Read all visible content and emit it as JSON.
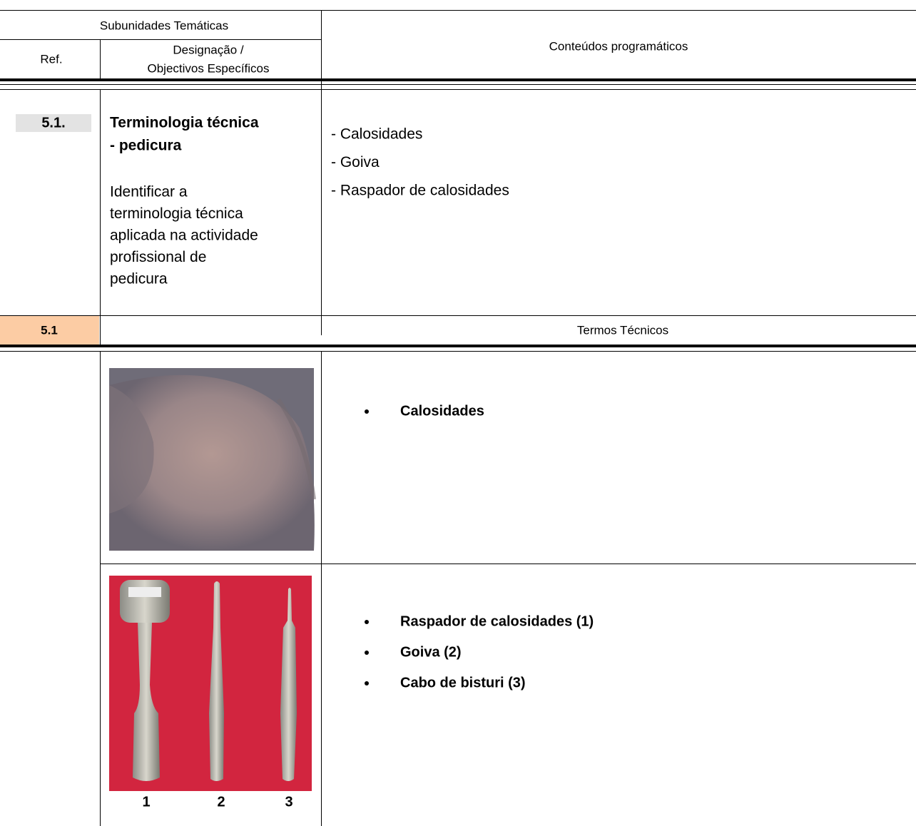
{
  "header": {
    "group": "Subunidades Temáticas",
    "ref": "Ref.",
    "designation": [
      "Designação /",
      "Objectivos Específicos"
    ],
    "contents": "Conteúdos programáticos"
  },
  "unit": {
    "ref": "5.1.",
    "title": [
      "Terminologia técnica",
      "- pedicura"
    ],
    "objective": [
      "Identificar a",
      "terminologia técnica",
      "aplicada na actividade",
      "profissional de",
      "pedicura"
    ],
    "contents": [
      "- Calosidades",
      "- Goiva",
      "- Raspador de calosidades"
    ]
  },
  "section": {
    "ref": "5.1",
    "title": "Termos Técnicos"
  },
  "items": [
    {
      "terms": [
        "Calosidades"
      ]
    },
    {
      "terms": [
        "Raspador de calosidades (1)",
        "Goiva (2)",
        "Cabo de bisturi (3)"
      ],
      "figure_labels": [
        "1",
        "2",
        "3"
      ]
    }
  ]
}
